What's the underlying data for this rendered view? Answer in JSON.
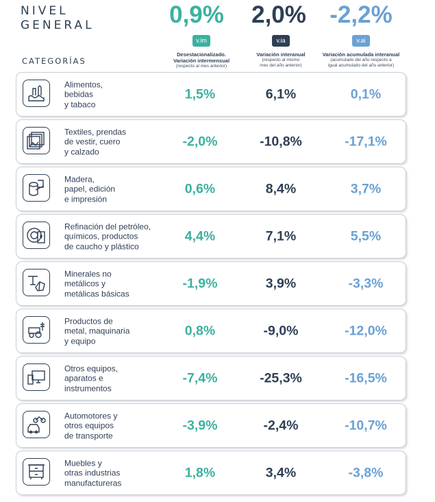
{
  "header": {
    "title_line1": "NIVEL",
    "title_line2": "GENERAL",
    "categories_label": "CATEGORÍAS",
    "columns": [
      {
        "value": "0,9%",
        "badge": "v.im",
        "title": "Desestacionalizado.",
        "title2": "Variación intermensual",
        "sub": "(respecto al mes anterior)",
        "sub2": ""
      },
      {
        "value": "2,0%",
        "badge": "v.ia",
        "title": "Variación interanual",
        "title2": "",
        "sub": "(respecto al mismo",
        "sub2": "mes del año anterior)"
      },
      {
        "value": "-2,2%",
        "badge": "v.ai",
        "title": "Variación acumulada interanual",
        "title2": "",
        "sub": "(acumulado del año respecto a",
        "sub2": "igual acumulado del año anterior)"
      }
    ]
  },
  "colors": {
    "teal": "#3bb1a0",
    "dark": "#2e3f55",
    "blue": "#6ba1d4"
  },
  "rows": [
    {
      "icon": "food-icon",
      "lines": [
        "Alimentos,",
        "bebidas",
        "y tabaco"
      ],
      "vim": "1,5%",
      "via": "6,1%",
      "vai": "0,1%"
    },
    {
      "icon": "textiles-icon",
      "lines": [
        "Textiles, prendas",
        "de vestir, cuero",
        "y calzado"
      ],
      "vim": "-2,0%",
      "via": "-10,8%",
      "vai": "-17,1%"
    },
    {
      "icon": "wood-paper-icon",
      "lines": [
        "Madera,",
        "papel, edición",
        "e impresión"
      ],
      "vim": "0,6%",
      "via": "8,4%",
      "vai": "3,7%"
    },
    {
      "icon": "oil-refinery-icon",
      "lines": [
        "Refinación del petróleo,",
        "químicos, productos",
        "de caucho y plástico"
      ],
      "vim": "4,4%",
      "via": "7,1%",
      "vai": "5,5%"
    },
    {
      "icon": "minerals-icon",
      "lines": [
        "Minerales no",
        "metálicos y",
        "metálicas básicas"
      ],
      "vim": "-1,9%",
      "via": "3,9%",
      "vai": "-3,3%"
    },
    {
      "icon": "tractor-icon",
      "lines": [
        "Productos de",
        "metal, maquinaria",
        "y equipo"
      ],
      "vim": "0,8%",
      "via": "-9,0%",
      "vai": "-12,0%"
    },
    {
      "icon": "computer-icon",
      "lines": [
        "Otros equipos,",
        "aparatos e",
        "instrumentos"
      ],
      "vim": "-7,4%",
      "via": "-25,3%",
      "vai": "-16,5%"
    },
    {
      "icon": "vehicles-icon",
      "lines": [
        "Automotores y",
        "otros equipos",
        "de transporte"
      ],
      "vim": "-3,9%",
      "via": "-2,4%",
      "vai": "-10,7%"
    },
    {
      "icon": "furniture-icon",
      "lines": [
        "Muebles y",
        "otras industrias",
        "manufactureras"
      ],
      "vim": "1,8%",
      "via": "3,4%",
      "vai": "-3,8%"
    }
  ]
}
